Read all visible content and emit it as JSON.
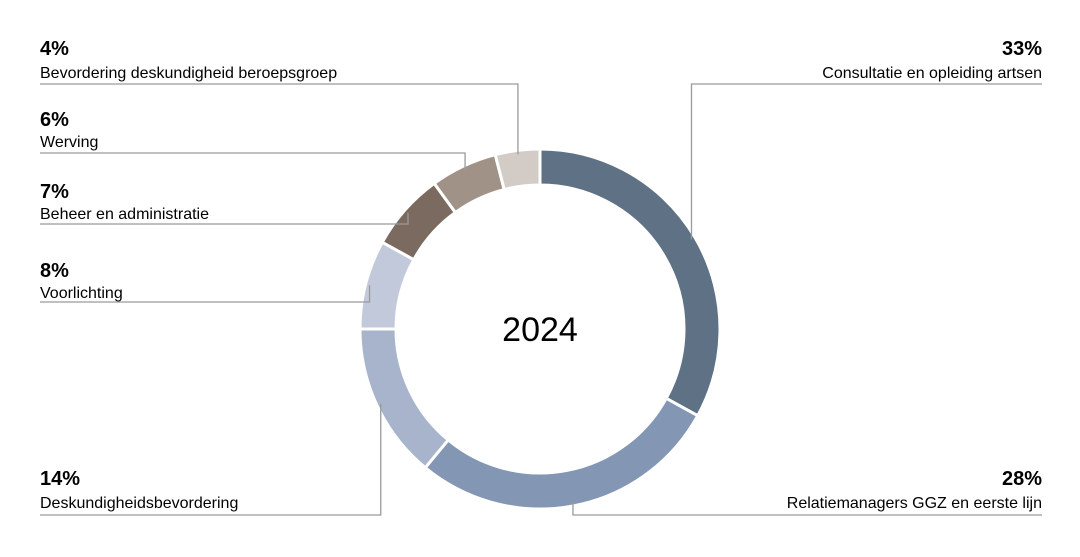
{
  "chart_data": {
    "type": "pie",
    "center_label": "2024",
    "slices": [
      {
        "label": "Consultatie en opleiding artsen",
        "value": 33,
        "display": "33%",
        "color": "#5e7185"
      },
      {
        "label": "Relatiemanagers GGZ en eerste lijn",
        "value": 28,
        "display": "28%",
        "color": "#8396b4"
      },
      {
        "label": "Deskundigheidsbevordering",
        "value": 14,
        "display": "14%",
        "color": "#a7b4cb"
      },
      {
        "label": "Voorlichting",
        "value": 8,
        "display": "8%",
        "color": "#c1c9da"
      },
      {
        "label": "Beheer en administratie",
        "value": 7,
        "display": "7%",
        "color": "#7a6a5f"
      },
      {
        "label": "Werving",
        "value": 6,
        "display": "6%",
        "color": "#a09286"
      },
      {
        "label": "Bevordering deskundigheid beroepsgroep",
        "value": 4,
        "display": "4%",
        "color": "#d3cbc5"
      }
    ]
  }
}
